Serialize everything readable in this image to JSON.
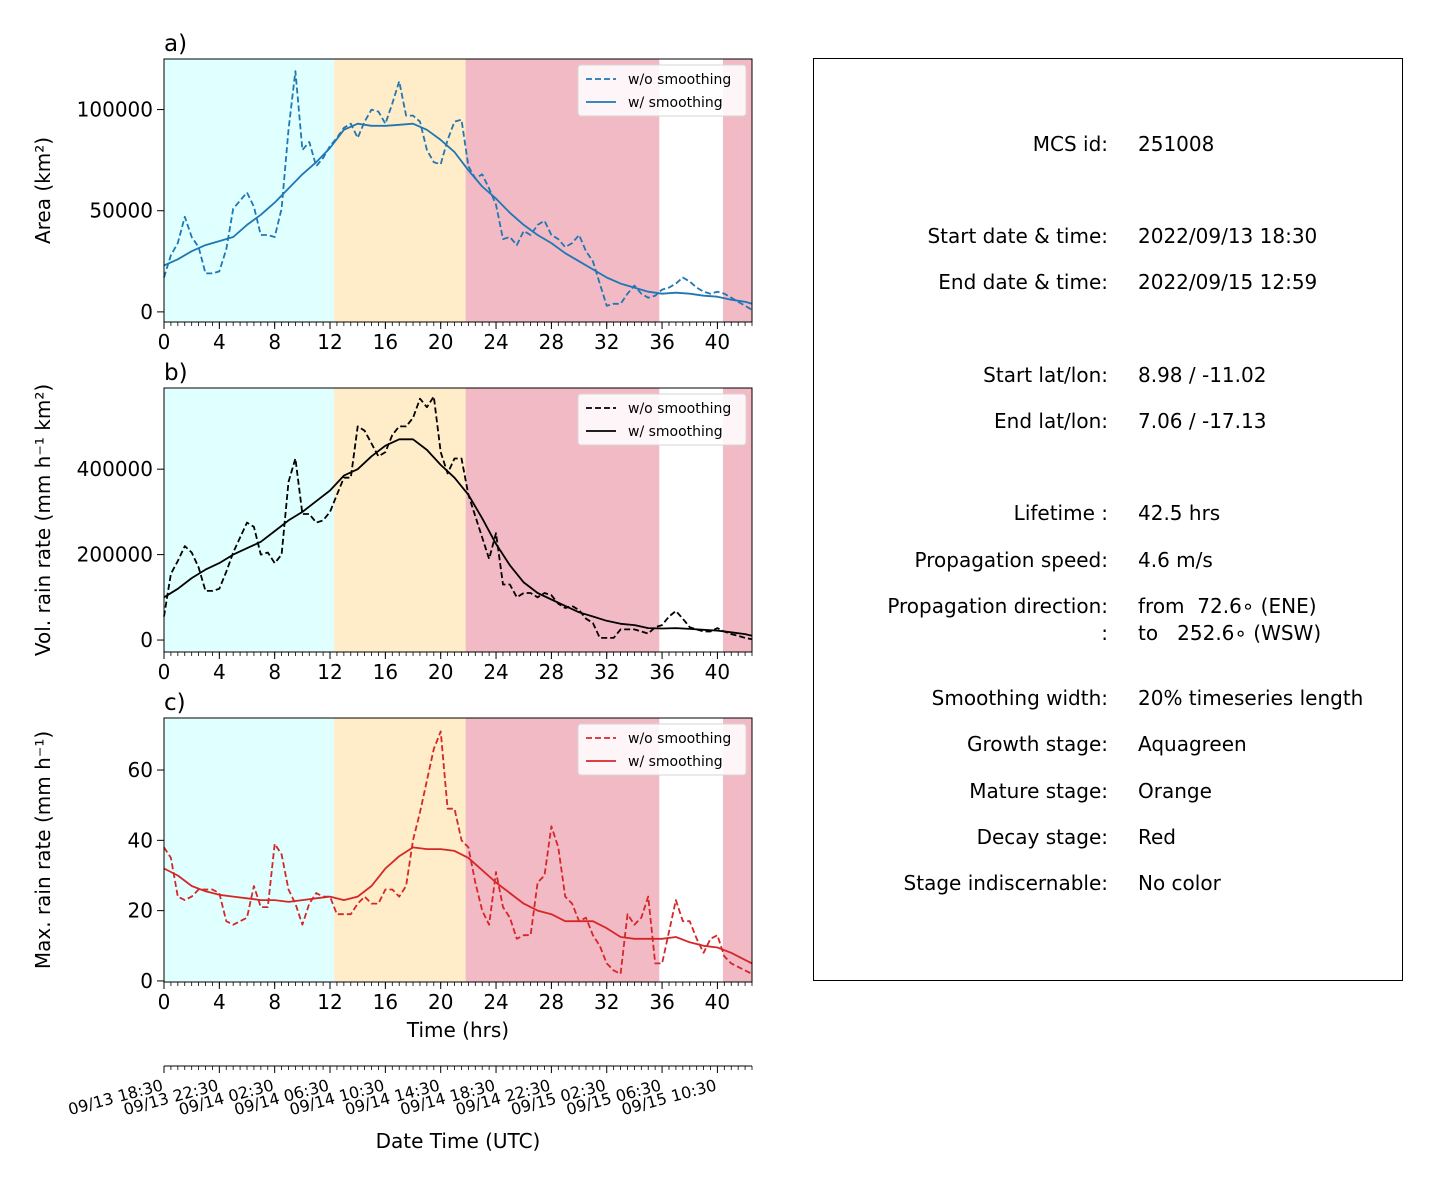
{
  "chart_data": [
    {
      "type": "line",
      "panel_label": "a)",
      "ylabel": "Area  (km²)",
      "xlim": [
        0,
        42.5
      ],
      "ylim": [
        -5000,
        125000
      ],
      "x_ticks": [
        "0",
        "4",
        "8",
        "12",
        "16",
        "20",
        "24",
        "28",
        "32",
        "36",
        "40"
      ],
      "y_ticks": [
        {
          "value": 0,
          "label": "0"
        },
        {
          "value": 50000,
          "label": "50000"
        },
        {
          "value": 100000,
          "label": "100000"
        }
      ],
      "color": "#1f77b4",
      "legend_position": "upper right",
      "series": [
        {
          "name": "w/o smoothing",
          "style": "dashed",
          "x": [
            0,
            0.5,
            1,
            1.5,
            2,
            2.5,
            3,
            3.5,
            4,
            4.5,
            5,
            5.5,
            6,
            6.5,
            7,
            7.5,
            8,
            8.5,
            9,
            9.5,
            10,
            10.5,
            11,
            11.5,
            12,
            12.5,
            13,
            13.5,
            14,
            14.5,
            15,
            15.5,
            16,
            16.5,
            17,
            17.5,
            18,
            18.5,
            19,
            19.5,
            20,
            20.5,
            21,
            21.5,
            22,
            22.5,
            23,
            23.5,
            24,
            24.5,
            25,
            25.5,
            26,
            26.5,
            27,
            27.5,
            28,
            28.5,
            29,
            29.5,
            30,
            30.5,
            31,
            31.5,
            32,
            32.5,
            33,
            33.5,
            34,
            34.5,
            35,
            35.5,
            36,
            36.5,
            37,
            37.5,
            38,
            38.5,
            39,
            39.5,
            40,
            40.5,
            41,
            41.5,
            42,
            42.5
          ],
          "y": [
            17000,
            28000,
            34000,
            47000,
            37000,
            32000,
            19000,
            19000,
            20000,
            31000,
            51000,
            55000,
            59000,
            52000,
            38000,
            38000,
            37000,
            51000,
            90000,
            119000,
            80000,
            84000,
            72000,
            76000,
            82000,
            86000,
            91000,
            93000,
            86000,
            94000,
            100000,
            99000,
            93000,
            103000,
            114000,
            97000,
            97000,
            94000,
            80000,
            74000,
            73000,
            85000,
            94000,
            95000,
            72000,
            66000,
            68000,
            61000,
            53000,
            36000,
            37000,
            33000,
            40000,
            38000,
            43000,
            45000,
            38000,
            36000,
            32000,
            34000,
            38000,
            30000,
            25000,
            14000,
            3000,
            4000,
            4000,
            9000,
            13000,
            9000,
            7000,
            8000,
            11000,
            12000,
            14000,
            17000,
            15000,
            12000,
            10000,
            9000,
            10000,
            9000,
            7000,
            5000,
            3000,
            1000
          ]
        },
        {
          "name": "w/ smoothing",
          "style": "solid",
          "x": [
            0,
            1,
            2,
            3,
            4,
            5,
            6,
            7,
            8,
            9,
            10,
            11,
            12,
            13,
            14,
            15,
            16,
            17,
            18,
            19,
            20,
            21,
            22,
            23,
            24,
            25,
            26,
            27,
            28,
            29,
            30,
            31,
            32,
            33,
            34,
            35,
            36,
            37,
            38,
            39,
            40,
            41,
            42,
            42.5
          ],
          "y": [
            23000,
            26000,
            30000,
            33000,
            35000,
            37000,
            43000,
            48000,
            54000,
            61000,
            68000,
            74000,
            81000,
            90000,
            93000,
            92000,
            92000,
            92500,
            93000,
            90000,
            85000,
            79000,
            70000,
            62000,
            56000,
            49000,
            43000,
            38000,
            34000,
            29000,
            25000,
            21000,
            17000,
            14000,
            12000,
            10000,
            9000,
            9500,
            9000,
            8000,
            7500,
            6000,
            5000,
            4000
          ]
        }
      ]
    },
    {
      "type": "line",
      "panel_label": "b)",
      "ylabel": "Vol. rain rate (mm h⁻¹ km²)",
      "xlim": [
        0,
        42.5
      ],
      "ylim": [
        -28000,
        590000
      ],
      "x_ticks": [
        "0",
        "4",
        "8",
        "12",
        "16",
        "20",
        "24",
        "28",
        "32",
        "36",
        "40"
      ],
      "y_ticks": [
        {
          "value": 0,
          "label": "0"
        },
        {
          "value": 200000,
          "label": "200000"
        },
        {
          "value": 400000,
          "label": "400000"
        }
      ],
      "color": "#000000",
      "legend_position": "upper right",
      "series": [
        {
          "name": "w/o smoothing",
          "style": "dashed",
          "x": [
            0,
            0.5,
            1,
            1.5,
            2,
            2.5,
            3,
            3.5,
            4,
            4.5,
            5,
            5.5,
            6,
            6.5,
            7,
            7.5,
            8,
            8.5,
            9,
            9.5,
            10,
            10.5,
            11,
            11.5,
            12,
            12.5,
            13,
            13.5,
            14,
            14.5,
            15,
            15.5,
            16,
            16.5,
            17,
            17.5,
            18,
            18.5,
            19,
            19.5,
            20,
            20.5,
            21,
            21.5,
            22,
            22.5,
            23,
            23.5,
            24,
            24.5,
            25,
            25.5,
            26,
            26.5,
            27,
            27.5,
            28,
            28.5,
            29,
            29.5,
            30,
            30.5,
            31,
            31.5,
            32,
            32.5,
            33,
            33.5,
            34,
            34.5,
            35,
            35.5,
            36,
            36.5,
            37,
            37.5,
            38,
            38.5,
            39,
            39.5,
            40,
            40.5,
            41,
            41.5,
            42,
            42.5
          ],
          "y": [
            55000,
            155000,
            185000,
            220000,
            205000,
            170000,
            115000,
            115000,
            120000,
            160000,
            205000,
            240000,
            275000,
            265000,
            200000,
            205000,
            180000,
            200000,
            370000,
            425000,
            295000,
            295000,
            275000,
            280000,
            300000,
            340000,
            380000,
            380000,
            500000,
            490000,
            460000,
            430000,
            440000,
            480000,
            500000,
            500000,
            520000,
            565000,
            545000,
            570000,
            440000,
            390000,
            425000,
            425000,
            340000,
            290000,
            240000,
            190000,
            250000,
            130000,
            130000,
            100000,
            110000,
            110000,
            100000,
            110000,
            105000,
            85000,
            75000,
            80000,
            70000,
            50000,
            40000,
            5000,
            5000,
            5000,
            25000,
            25000,
            25000,
            20000,
            15000,
            30000,
            35000,
            55000,
            68000,
            50000,
            30000,
            25000,
            20000,
            20000,
            28000,
            20000,
            14000,
            10000,
            5000,
            2000
          ]
        },
        {
          "name": "w/ smoothing",
          "style": "solid",
          "x": [
            0,
            1,
            2,
            3,
            4,
            5,
            6,
            7,
            8,
            9,
            10,
            11,
            12,
            13,
            14,
            15,
            16,
            17,
            18,
            19,
            20,
            21,
            22,
            23,
            24,
            25,
            26,
            27,
            28,
            29,
            30,
            31,
            32,
            33,
            34,
            35,
            36,
            37,
            38,
            39,
            40,
            41,
            42,
            42.5
          ],
          "y": [
            100000,
            120000,
            145000,
            165000,
            180000,
            200000,
            215000,
            230000,
            255000,
            280000,
            300000,
            325000,
            350000,
            385000,
            400000,
            430000,
            455000,
            470000,
            470000,
            445000,
            410000,
            380000,
            340000,
            285000,
            225000,
            175000,
            135000,
            110000,
            95000,
            80000,
            65000,
            55000,
            45000,
            38000,
            35000,
            28000,
            27000,
            28000,
            26000,
            24000,
            22000,
            18000,
            14000,
            10000
          ]
        }
      ]
    },
    {
      "type": "line",
      "panel_label": "c)",
      "ylabel": "Max. rain rate  (mm h⁻¹)",
      "xlabel": "Time (hrs)",
      "xlim": [
        0,
        42.5
      ],
      "ylim": [
        -0.3,
        74.8
      ],
      "x_ticks": [
        "0",
        "4",
        "8",
        "12",
        "16",
        "20",
        "24",
        "28",
        "32",
        "36",
        "40"
      ],
      "y_ticks": [
        {
          "value": 0,
          "label": "0"
        },
        {
          "value": 20,
          "label": "20"
        },
        {
          "value": 40,
          "label": "40"
        },
        {
          "value": 60,
          "label": "60"
        }
      ],
      "color": "#d62728",
      "legend_position": "upper right",
      "series": [
        {
          "name": "w/o smoothing",
          "style": "dashed",
          "x": [
            0,
            0.5,
            1,
            1.5,
            2,
            2.5,
            3,
            3.5,
            4,
            4.5,
            5,
            5.5,
            6,
            6.5,
            7,
            7.5,
            8,
            8.5,
            9,
            9.5,
            10,
            10.5,
            11,
            11.5,
            12,
            12.5,
            13,
            13.5,
            14,
            14.5,
            15,
            15.5,
            16,
            16.5,
            17,
            17.5,
            18,
            18.5,
            19,
            19.5,
            20,
            20.5,
            21,
            21.5,
            22,
            22.5,
            23,
            23.5,
            24,
            24.5,
            25,
            25.5,
            26,
            26.5,
            27,
            27.5,
            28,
            28.5,
            29,
            29.5,
            30,
            30.5,
            31,
            31.5,
            32,
            32.5,
            33,
            33.5,
            34,
            34.5,
            35,
            35.5,
            36,
            36.5,
            37,
            37.5,
            38,
            38.5,
            39,
            39.5,
            40,
            40.5,
            41,
            41.5,
            42,
            42.5
          ],
          "y": [
            38,
            35,
            24,
            23,
            24,
            26,
            26,
            26,
            25,
            17,
            16,
            17,
            18,
            27,
            21,
            21,
            39,
            36,
            26,
            22,
            16,
            22,
            25,
            24,
            24,
            19,
            19,
            19,
            22,
            24,
            22,
            22,
            26,
            26,
            24,
            27,
            40,
            48,
            57,
            66,
            71,
            49,
            49,
            40,
            38,
            28,
            20,
            16,
            31,
            21,
            18,
            12,
            13,
            13,
            28,
            30,
            44,
            38,
            24,
            22,
            17,
            18,
            13,
            10,
            5,
            3,
            2,
            19,
            16,
            18,
            24,
            5,
            5,
            14,
            23,
            17,
            17,
            12,
            8,
            12,
            13,
            7,
            5,
            4,
            3,
            2
          ]
        },
        {
          "name": "w/ smoothing",
          "style": "solid",
          "x": [
            0,
            1,
            2,
            3,
            4,
            5,
            6,
            7,
            8,
            9,
            10,
            11,
            12,
            13,
            14,
            15,
            16,
            17,
            18,
            19,
            20,
            21,
            22,
            23,
            24,
            25,
            26,
            27,
            28,
            29,
            30,
            31,
            32,
            33,
            34,
            35,
            36,
            37,
            38,
            39,
            40,
            41,
            42,
            42.5
          ],
          "y": [
            32,
            30,
            27,
            25.5,
            24.5,
            24,
            23.5,
            23,
            23,
            22.5,
            23,
            23.5,
            24,
            23,
            24,
            27,
            32,
            35.5,
            38,
            37.5,
            37.5,
            37,
            35,
            31.5,
            28,
            25,
            22,
            20,
            19,
            17,
            17,
            17,
            15,
            12.5,
            12,
            12,
            12,
            12.5,
            11,
            10,
            9.5,
            8,
            6,
            5
          ]
        }
      ]
    }
  ],
  "datetime_axis": {
    "label": "Date Time (UTC)",
    "ticks": [
      "09/13 18:30",
      "09/13 22:30",
      "09/14 02:30",
      "09/14 06:30",
      "09/14 10:30",
      "09/14 14:30",
      "09/14 18:30",
      "09/14 22:30",
      "09/15 02:30",
      "09/15 06:30",
      "09/15 10:30"
    ]
  },
  "stages": [
    {
      "name": "Growth stage",
      "start": 0,
      "end": 12.3,
      "color": "#e0ffff"
    },
    {
      "name": "Mature stage",
      "start": 12.3,
      "end": 21.8,
      "color": "#ffecc9"
    },
    {
      "name": "Decay stage",
      "start": 21.8,
      "end": 35.8,
      "color": "#f2bac5"
    },
    {
      "name": "Decay stage",
      "start": 40.4,
      "end": 42.5,
      "color": "#f2bac5"
    }
  ],
  "info": {
    "mcs_id": {
      "key": "MCS id:",
      "value": "251008"
    },
    "start_time": {
      "key": "Start date & time:",
      "value": "2022/09/13 18:30"
    },
    "end_time": {
      "key": "End date & time:",
      "value": "2022/09/15 12:59"
    },
    "start_latlon": {
      "key": "Start lat/lon:",
      "value": "8.98 / -11.02"
    },
    "end_latlon": {
      "key": "End lat/lon:",
      "value": "7.06 / -17.13"
    },
    "lifetime": {
      "key": "Lifetime :",
      "value": "42.5 hrs"
    },
    "speed": {
      "key": "Propagation speed:",
      "value": "4.6 m/s"
    },
    "direction_from": {
      "key": "Propagation direction:",
      "value": "from  72.6∘ (ENE)"
    },
    "direction_to": {
      "key": ":",
      "value": "to   252.6∘ (WSW)"
    },
    "smoothing": {
      "key": "Smoothing width:",
      "value": "20% timeseries length"
    },
    "growth": {
      "key": "Growth stage:",
      "value": "Aquagreen"
    },
    "mature": {
      "key": "Mature stage:",
      "value": "Orange"
    },
    "decay": {
      "key": "Decay stage:",
      "value": "Red"
    },
    "indiscernable": {
      "key": "Stage indiscernable:",
      "value": "No color"
    }
  }
}
